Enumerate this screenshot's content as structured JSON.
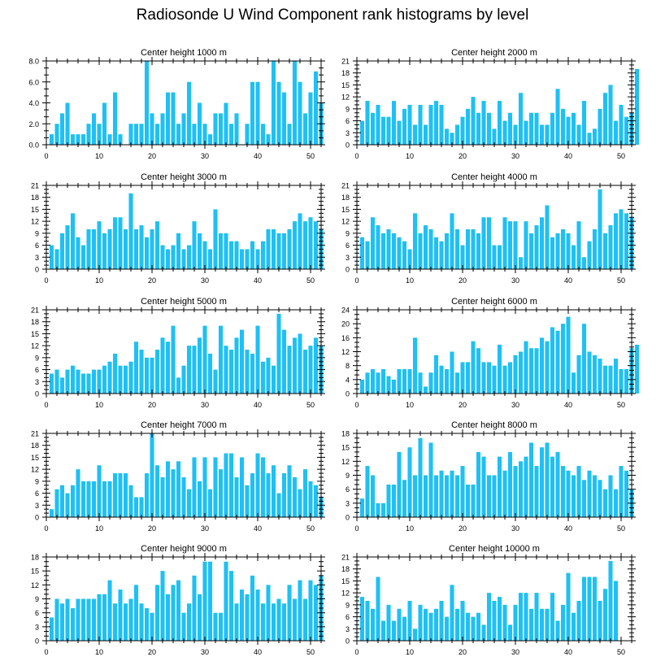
{
  "title": "Radiosonde U Wind Component rank histograms by level",
  "bar_color": "#1ec0f5",
  "chart_data": [
    {
      "type": "bar",
      "title": "Center height 1000 m",
      "xlim": [
        0,
        52
      ],
      "ylim": [
        0,
        8
      ],
      "yticks": [
        0,
        2,
        4,
        6,
        8
      ],
      "ytick_labels": [
        "0.0",
        "2.0",
        "4.0",
        "6.0",
        "8.0"
      ],
      "xticks": [
        0,
        10,
        20,
        30,
        40,
        50
      ],
      "xtick_labels": [
        "0",
        "10",
        "20",
        "30",
        "40",
        "50"
      ],
      "values": [
        1,
        2,
        3,
        4,
        1,
        1,
        1,
        2,
        3,
        2,
        4,
        1,
        5,
        1,
        0,
        2,
        2,
        2,
        8,
        3,
        2,
        3,
        5,
        5,
        2,
        3,
        6,
        2,
        4,
        2,
        1,
        3,
        3,
        4,
        2,
        3,
        0,
        2,
        6,
        6,
        2,
        1,
        8,
        6,
        5,
        2,
        8,
        6,
        3,
        5,
        7,
        4
      ]
    },
    {
      "type": "bar",
      "title": "Center height 2000 m",
      "xlim": [
        0,
        52
      ],
      "ylim": [
        0,
        21
      ],
      "yticks": [
        0,
        3,
        6,
        9,
        12,
        15,
        18,
        21
      ],
      "ytick_labels": [
        "0",
        "3",
        "6",
        "9",
        "12",
        "15",
        "18",
        "21"
      ],
      "xticks": [
        0,
        10,
        20,
        30,
        40,
        50
      ],
      "xtick_labels": [
        "0",
        "10",
        "20",
        "30",
        "40",
        "50"
      ],
      "values": [
        6,
        11,
        8,
        10,
        7,
        7,
        11,
        6,
        9,
        10,
        5,
        10,
        5,
        10,
        11,
        10,
        4,
        3,
        5,
        7,
        9,
        12,
        8,
        11,
        8,
        4,
        11,
        6,
        8,
        5,
        13,
        6,
        8,
        8,
        5,
        5,
        8,
        14,
        9,
        7,
        8,
        5,
        11,
        3,
        4,
        9,
        13,
        15,
        6,
        10,
        7,
        8,
        19
      ]
    },
    {
      "type": "bar",
      "title": "Center height 3000 m",
      "xlim": [
        0,
        52
      ],
      "ylim": [
        0,
        21
      ],
      "yticks": [
        0,
        3,
        6,
        9,
        12,
        15,
        18,
        21
      ],
      "ytick_labels": [
        "0",
        "3",
        "6",
        "9",
        "12",
        "15",
        "18",
        "21"
      ],
      "xticks": [
        0,
        10,
        20,
        30,
        40,
        50
      ],
      "xtick_labels": [
        "0",
        "10",
        "20",
        "30",
        "40",
        "50"
      ],
      "values": [
        6,
        5,
        9,
        11,
        14,
        8,
        6,
        10,
        10,
        12,
        9,
        10,
        13,
        13,
        10,
        19,
        10,
        11,
        8,
        10,
        12,
        6,
        5,
        6,
        9,
        5,
        6,
        12,
        9,
        7,
        5,
        15,
        9,
        9,
        7,
        7,
        5,
        5,
        7,
        5,
        7,
        10,
        10,
        9,
        9,
        10,
        12,
        14,
        12,
        13,
        12,
        10
      ]
    },
    {
      "type": "bar",
      "title": "Center height 4000 m",
      "xlim": [
        0,
        52
      ],
      "ylim": [
        0,
        21
      ],
      "yticks": [
        0,
        3,
        6,
        9,
        12,
        15,
        18,
        21
      ],
      "ytick_labels": [
        "0",
        "3",
        "6",
        "9",
        "12",
        "15",
        "18",
        "21"
      ],
      "xticks": [
        0,
        10,
        20,
        30,
        40,
        50
      ],
      "xtick_labels": [
        "0",
        "10",
        "20",
        "30",
        "40",
        "50"
      ],
      "values": [
        8,
        7,
        13,
        11,
        9,
        10,
        9,
        8,
        7,
        5,
        14,
        9,
        11,
        10,
        8,
        7,
        9,
        14,
        10,
        6,
        10,
        10,
        9,
        13,
        13,
        6,
        6,
        13,
        12,
        12,
        3,
        12,
        9,
        11,
        13,
        16,
        8,
        9,
        10,
        9,
        6,
        12,
        3,
        7,
        10,
        20,
        9,
        11,
        14,
        15,
        14,
        13
      ]
    },
    {
      "type": "bar",
      "title": "Center height 5000 m",
      "xlim": [
        0,
        52
      ],
      "ylim": [
        0,
        21
      ],
      "yticks": [
        0,
        3,
        6,
        9,
        12,
        15,
        18,
        21
      ],
      "ytick_labels": [
        "0",
        "3",
        "6",
        "9",
        "12",
        "15",
        "18",
        "21"
      ],
      "xticks": [
        0,
        10,
        20,
        30,
        40,
        50
      ],
      "xtick_labels": [
        "0",
        "10",
        "20",
        "30",
        "40",
        "50"
      ],
      "values": [
        5,
        6,
        4,
        6,
        7,
        6,
        5,
        5,
        6,
        6,
        7,
        8,
        10,
        7,
        7,
        8,
        13,
        11,
        9,
        9,
        11,
        14,
        13,
        17,
        4,
        7,
        12,
        12,
        14,
        17,
        10,
        6,
        17,
        12,
        11,
        14,
        16,
        11,
        10,
        17,
        8,
        9,
        7,
        20,
        16,
        12,
        14,
        15,
        11,
        12,
        14,
        12
      ]
    },
    {
      "type": "bar",
      "title": "Center height 6000 m",
      "xlim": [
        0,
        52
      ],
      "ylim": [
        0,
        24
      ],
      "yticks": [
        0,
        4,
        8,
        12,
        16,
        20,
        24
      ],
      "ytick_labels": [
        "0",
        "4",
        "8",
        "12",
        "16",
        "20",
        "24"
      ],
      "xticks": [
        0,
        10,
        20,
        30,
        40,
        50
      ],
      "xtick_labels": [
        "0",
        "10",
        "20",
        "30",
        "40",
        "50"
      ],
      "values": [
        4,
        6,
        7,
        6,
        7,
        5,
        4,
        7,
        7,
        7,
        16,
        6,
        2,
        6,
        11,
        8,
        7,
        12,
        6,
        9,
        9,
        15,
        13,
        9,
        9,
        8,
        14,
        8,
        9,
        11,
        12,
        15,
        13,
        13,
        16,
        15,
        19,
        18,
        20,
        22,
        6,
        11,
        20,
        12,
        11,
        10,
        8,
        8,
        10,
        7,
        7,
        13,
        14
      ]
    },
    {
      "type": "bar",
      "title": "Center height 7000 m",
      "xlim": [
        0,
        52
      ],
      "ylim": [
        0,
        21
      ],
      "yticks": [
        0,
        3,
        6,
        9,
        12,
        15,
        18,
        21
      ],
      "ytick_labels": [
        "0",
        "3",
        "6",
        "9",
        "12",
        "15",
        "18",
        "21"
      ],
      "xticks": [
        0,
        10,
        20,
        30,
        40,
        50
      ],
      "xtick_labels": [
        "0",
        "10",
        "20",
        "30",
        "40",
        "50"
      ],
      "values": [
        2,
        7,
        8,
        6,
        8,
        12,
        9,
        9,
        9,
        13,
        9,
        9,
        11,
        11,
        11,
        8,
        5,
        5,
        11,
        21,
        13,
        10,
        14,
        12,
        14,
        10,
        7,
        15,
        9,
        15,
        7,
        15,
        12,
        16,
        16,
        10,
        15,
        8,
        11,
        16,
        15,
        11,
        13,
        6,
        11,
        13,
        10,
        7,
        12,
        9,
        8,
        5
      ]
    },
    {
      "type": "bar",
      "title": "Center height 8000 m",
      "xlim": [
        0,
        52
      ],
      "ylim": [
        0,
        18
      ],
      "yticks": [
        0,
        3,
        6,
        9,
        12,
        15,
        18
      ],
      "ytick_labels": [
        "0",
        "3",
        "6",
        "9",
        "12",
        "15",
        "18"
      ],
      "xticks": [
        0,
        10,
        20,
        30,
        40,
        50
      ],
      "xtick_labels": [
        "0",
        "10",
        "20",
        "30",
        "40",
        "50"
      ],
      "values": [
        4,
        11,
        9,
        3,
        3,
        7,
        7,
        14,
        8,
        15,
        9,
        17,
        9,
        16,
        9,
        10,
        9,
        10,
        9,
        11,
        7,
        7,
        14,
        13,
        9,
        9,
        13,
        10,
        14,
        11,
        12,
        13,
        16,
        11,
        15,
        16,
        13,
        14,
        11,
        10,
        9,
        11,
        8,
        10,
        9,
        8,
        6,
        9,
        6,
        11,
        10,
        6
      ]
    },
    {
      "type": "bar",
      "title": "Center height 9000 m",
      "xlim": [
        0,
        52
      ],
      "ylim": [
        0,
        18
      ],
      "yticks": [
        0,
        3,
        6,
        9,
        12,
        15,
        18
      ],
      "ytick_labels": [
        "0",
        "3",
        "6",
        "9",
        "12",
        "15",
        "18"
      ],
      "xticks": [
        0,
        10,
        20,
        30,
        40,
        50
      ],
      "xtick_labels": [
        "0",
        "10",
        "20",
        "30",
        "40",
        "50"
      ],
      "values": [
        5,
        9,
        8,
        9,
        7,
        9,
        9,
        9,
        9,
        10,
        10,
        13,
        8,
        11,
        8,
        9,
        12,
        8,
        7,
        6,
        12,
        15,
        10,
        12,
        13,
        6,
        8,
        14,
        10,
        17,
        17,
        6,
        6,
        17,
        15,
        8,
        11,
        10,
        14,
        11,
        8,
        12,
        8,
        9,
        8,
        12,
        9,
        13,
        9,
        13,
        12,
        14
      ]
    },
    {
      "type": "bar",
      "title": "Center height 10000 m",
      "xlim": [
        0,
        52
      ],
      "ylim": [
        0,
        21
      ],
      "yticks": [
        0,
        3,
        6,
        9,
        12,
        15,
        18,
        21
      ],
      "ytick_labels": [
        "0",
        "3",
        "6",
        "9",
        "12",
        "15",
        "18",
        "21"
      ],
      "xticks": [
        0,
        10,
        20,
        30,
        40,
        50
      ],
      "xtick_labels": [
        "0",
        "10",
        "20",
        "30",
        "40",
        "50"
      ],
      "values": [
        11,
        10,
        8,
        16,
        5,
        9,
        5,
        8,
        6,
        10,
        3,
        9,
        8,
        7,
        8,
        10,
        6,
        14,
        8,
        10,
        7,
        6,
        7,
        4,
        12,
        10,
        11,
        9,
        4,
        9,
        12,
        12,
        8,
        12,
        8,
        8,
        12,
        5,
        9,
        17,
        7,
        10,
        16,
        16,
        16,
        10,
        13,
        20,
        15
      ]
    }
  ]
}
